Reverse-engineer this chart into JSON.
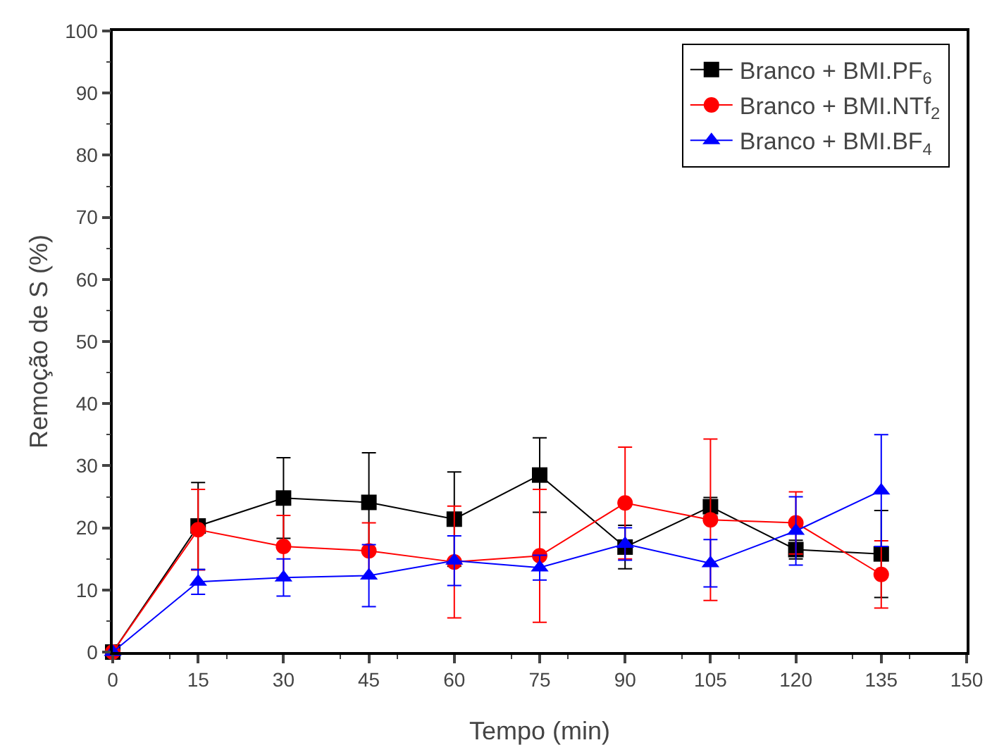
{
  "chart_data": {
    "type": "line",
    "xlabel": "Tempo (min)",
    "ylabel": "Remoção de S (%)",
    "x": [
      0,
      15,
      30,
      45,
      60,
      75,
      90,
      105,
      120,
      135
    ],
    "xlim": [
      0,
      150
    ],
    "xticks": [
      0,
      15,
      30,
      45,
      60,
      75,
      90,
      105,
      120,
      135,
      150
    ],
    "ylim": [
      0,
      100
    ],
    "yticks": [
      0,
      10,
      20,
      30,
      40,
      50,
      60,
      70,
      80,
      90,
      100
    ],
    "grid": false,
    "legend": "top right",
    "series": [
      {
        "name": "Branco + BMI.PF$_{6}$",
        "color": "#000000",
        "marker": "square",
        "values": [
          0,
          20.3,
          24.8,
          24.1,
          21.4,
          28.5,
          16.9,
          23.4,
          16.5,
          15.8
        ],
        "errors": [
          null,
          7,
          6.5,
          8,
          7.6,
          6,
          3.5,
          1.5,
          1.5,
          7
        ]
      },
      {
        "name": "Branco + BMI.NTf$_{2}$",
        "color": "#ff0000",
        "marker": "circle",
        "values": [
          0,
          19.7,
          17,
          16.3,
          14.5,
          15.5,
          24,
          21.3,
          20.8,
          12.5
        ],
        "errors": [
          null,
          6.5,
          5,
          4.5,
          9,
          10.7,
          9,
          13,
          5,
          5.4
        ]
      },
      {
        "name": "Branco + BMI.BF$_{4}$",
        "color": "#0000ff",
        "marker": "triangle",
        "values": [
          0,
          11.3,
          12,
          12.3,
          14.7,
          13.6,
          17.4,
          14.3,
          19.5,
          26
        ],
        "errors": [
          null,
          2,
          3,
          5,
          4,
          2,
          2.6,
          3.8,
          5.5,
          9
        ]
      }
    ]
  }
}
